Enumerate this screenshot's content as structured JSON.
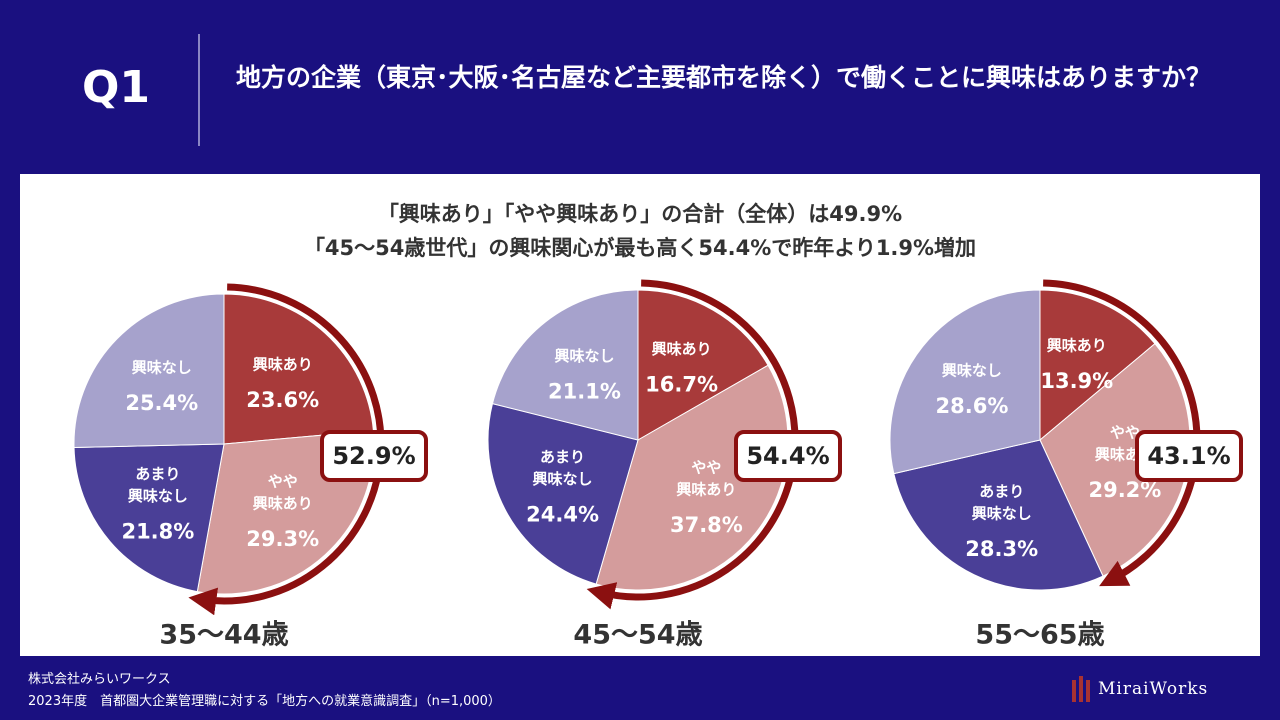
{
  "header": {
    "q_label": "Q1",
    "question": "地方の企業（東京･大阪･名古屋など主要都市を除く）で働くことに興味はありますか？"
  },
  "headline": {
    "line1": "「興味あり」「やや興味あり」の合計（全体）は49.9%",
    "line2": "「45～54歳世代」の興味関心が最も高く54.4%で昨年より1.9%増加"
  },
  "colors": {
    "interested": "#a83a3a",
    "somewhat_interested": "#d49c9c",
    "not_very_interested": "#4a3f97",
    "not_interested": "#a6a2cc",
    "arrow": "#8b1010",
    "background": "#1a1080"
  },
  "chart_data": [
    {
      "type": "pie",
      "title": "35～44歳",
      "categories": [
        "興味あり",
        "やや興味あり",
        "あまり興味なし",
        "興味なし"
      ],
      "values": [
        23.6,
        29.3,
        21.8,
        25.4
      ],
      "value_labels": [
        "23.6%",
        "29.3%",
        "21.8%",
        "25.4%"
      ],
      "category_lines": [
        [
          "興味あり"
        ],
        [
          "やや",
          "興味あり"
        ],
        [
          "あまり",
          "興味なし"
        ],
        [
          "興味なし"
        ]
      ],
      "combined_label": "52.9%"
    },
    {
      "type": "pie",
      "title": "45～54歳",
      "categories": [
        "興味あり",
        "やや興味あり",
        "あまり興味なし",
        "興味なし"
      ],
      "values": [
        16.7,
        37.8,
        24.4,
        21.1
      ],
      "value_labels": [
        "16.7%",
        "37.8%",
        "24.4%",
        "21.1%"
      ],
      "category_lines": [
        [
          "興味あり"
        ],
        [
          "やや",
          "興味あり"
        ],
        [
          "あまり",
          "興味なし"
        ],
        [
          "興味なし"
        ]
      ],
      "combined_label": "54.4%"
    },
    {
      "type": "pie",
      "title": "55～65歳",
      "categories": [
        "興味あり",
        "やや興味あり",
        "あまり興味なし",
        "興味なし"
      ],
      "values": [
        13.9,
        29.2,
        28.3,
        28.6
      ],
      "value_labels": [
        "13.9%",
        "29.2%",
        "28.3%",
        "28.6%"
      ],
      "category_lines": [
        [
          "興味あり"
        ],
        [
          "やや",
          "興味あり"
        ],
        [
          "あまり",
          "興味なし"
        ],
        [
          "興味なし"
        ]
      ],
      "combined_label": "43.1%"
    }
  ],
  "footer": {
    "company": "株式会社みらいワークス",
    "source": "2023年度　首都圏大企業管理職に対する「地方への就業意識調査」（n=1,000）"
  },
  "logo": {
    "text": "MiraiWorks"
  }
}
